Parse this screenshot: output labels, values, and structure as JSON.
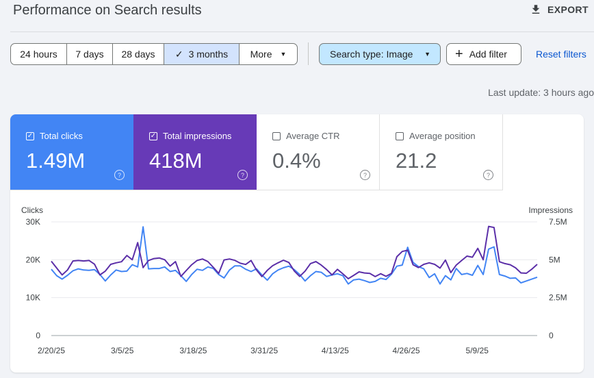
{
  "header": {
    "title": "Performance on Search results",
    "export_label": "EXPORT"
  },
  "date_ranges": [
    {
      "label": "24 hours",
      "selected": false
    },
    {
      "label": "7 days",
      "selected": false
    },
    {
      "label": "28 days",
      "selected": false
    },
    {
      "label": "3 months",
      "selected": true
    },
    {
      "label": "More",
      "selected": false
    }
  ],
  "filters": {
    "search_type": "Search type: Image",
    "add_filter": "Add filter",
    "reset": "Reset filters"
  },
  "last_update": "Last update: 3 hours ago",
  "metrics": [
    {
      "label": "Total clicks",
      "value": "1.49M",
      "checked": true,
      "color": "#4285f4"
    },
    {
      "label": "Total impressions",
      "value": "418M",
      "checked": true,
      "color": "#673ab7"
    },
    {
      "label": "Average CTR",
      "value": "0.4%",
      "checked": false
    },
    {
      "label": "Average position",
      "value": "21.2",
      "checked": false
    }
  ],
  "chart_data": {
    "type": "line",
    "ylabel_left": "Clicks",
    "ylabel_right": "Impressions",
    "left_ticks": [
      "0",
      "10K",
      "20K",
      "30K"
    ],
    "right_ticks": [
      "0",
      "2.5M",
      "5M",
      "7.5M"
    ],
    "ylim_left": [
      0,
      30000
    ],
    "ylim_right": [
      0,
      7500000
    ],
    "x_tick_labels": [
      "2/20/25",
      "3/5/25",
      "3/18/25",
      "3/31/25",
      "4/13/25",
      "4/26/25",
      "5/9/25"
    ],
    "x_start": "2025-02-20",
    "x_end": "2025-05-20",
    "grid": true,
    "series": [
      {
        "name": "Clicks",
        "axis": "left",
        "color": "#4285f4",
        "values": [
          17500,
          15800,
          14900,
          15900,
          17100,
          17600,
          17300,
          17200,
          17400,
          16100,
          14400,
          16000,
          17300,
          16900,
          17000,
          18700,
          18100,
          28700,
          17600,
          17700,
          17700,
          18100,
          16900,
          17200,
          15800,
          14300,
          16100,
          17500,
          17200,
          18100,
          17700,
          16100,
          15200,
          17300,
          18400,
          18400,
          17500,
          16900,
          17600,
          16000,
          14600,
          16300,
          17300,
          17900,
          18300,
          17400,
          16100,
          14400,
          15800,
          16900,
          16700,
          15600,
          16000,
          16300,
          15800,
          13600,
          14700,
          14900,
          14500,
          14000,
          14300,
          15100,
          14800,
          16200,
          18300,
          18600,
          23300,
          19300,
          18200,
          17600,
          15300,
          16300,
          13600,
          15800,
          14700,
          17700,
          16100,
          16400,
          15900,
          18500,
          16100,
          22800,
          23400,
          16100,
          15700,
          15100,
          15200,
          13900,
          14400,
          14900,
          15400
        ]
      },
      {
        "name": "Impressions",
        "axis": "right",
        "color": "#5b2fa8",
        "values": [
          4900000,
          4450000,
          4000000,
          4330000,
          4920000,
          4950000,
          4920000,
          4950000,
          4710000,
          4000000,
          4250000,
          4700000,
          4800000,
          4870000,
          5280000,
          5000000,
          6130000,
          4480000,
          4950000,
          5080000,
          5120000,
          5000000,
          4580000,
          4880000,
          3900000,
          4290000,
          4670000,
          4950000,
          5050000,
          4880000,
          4500000,
          4100000,
          4990000,
          5050000,
          4960000,
          4770000,
          4690000,
          4950000,
          4330000,
          3890000,
          4300000,
          4610000,
          4800000,
          4970000,
          4820000,
          4260000,
          3900000,
          4250000,
          4750000,
          4880000,
          4650000,
          4350000,
          4000000,
          4370000,
          4070000,
          3750000,
          3970000,
          4200000,
          4130000,
          4100000,
          3890000,
          4080000,
          3910000,
          4100000,
          5200000,
          5550000,
          5630000,
          4670000,
          4480000,
          4700000,
          4800000,
          4700000,
          4450000,
          4980000,
          4150000,
          4650000,
          4950000,
          5240000,
          5170000,
          5750000,
          5000000,
          7200000,
          7130000,
          4870000,
          4750000,
          4670000,
          4470000,
          4130000,
          4110000,
          4380000,
          4700000
        ]
      }
    ]
  }
}
